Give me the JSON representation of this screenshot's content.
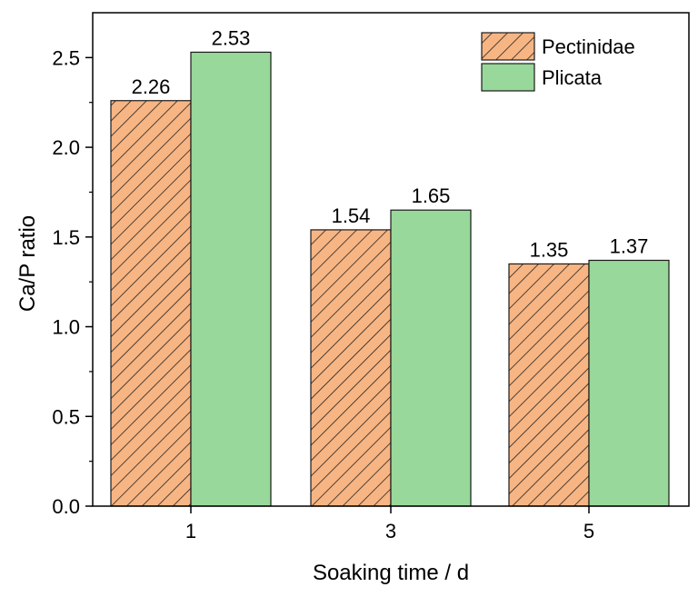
{
  "chart_data": {
    "type": "bar",
    "title": "",
    "xlabel": "Soaking time / d",
    "ylabel": "Ca/P ratio",
    "categories": [
      "1",
      "3",
      "5"
    ],
    "series": [
      {
        "name": "Pectinidae",
        "values": [
          2.26,
          1.54,
          1.35
        ],
        "labels": [
          "2.26",
          "1.54",
          "1.35"
        ],
        "color": "#F7B583",
        "pattern": "diagonal-hatch"
      },
      {
        "name": "Plicata",
        "values": [
          2.53,
          1.65,
          1.37
        ],
        "labels": [
          "2.53",
          "1.65",
          "1.37"
        ],
        "color": "#98D89A",
        "pattern": "solid"
      }
    ],
    "ylim": [
      0,
      2.75
    ],
    "yticks": [
      0.0,
      0.5,
      1.0,
      1.5,
      2.0,
      2.5
    ],
    "ytick_labels": [
      "0.0",
      "0.5",
      "1.0",
      "1.5",
      "2.0",
      "2.5"
    ],
    "grid": false,
    "legend_position": "top-right"
  }
}
